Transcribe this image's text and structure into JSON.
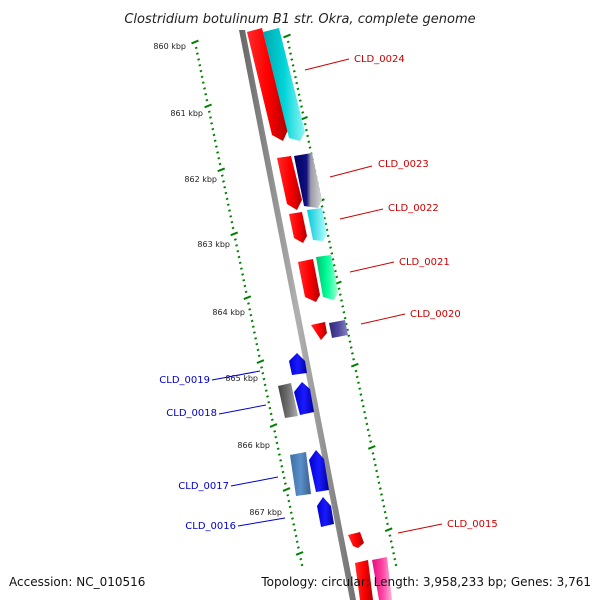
{
  "title": "Clostridium botulinum B1 str. Okra, complete genome",
  "accession": "Accession: NC_010516",
  "summary": "Topology: circular; Length: 3,958,233 bp; Genes: 3,761",
  "ticks": [
    "860 kbp",
    "861 kbp",
    "862 kbp",
    "863 kbp",
    "864 kbp",
    "865 kbp",
    "866 kbp",
    "867 kbp"
  ],
  "colors": {
    "forward_label": "#cc0000",
    "reverse_label": "#0000cc",
    "backbone": "#888888",
    "tick": "#008000"
  },
  "features": {
    "forward": [
      "CLD_0024",
      "CLD_0023",
      "CLD_0022",
      "CLD_0021",
      "CLD_0020",
      "CLD_0015"
    ],
    "reverse": [
      "CLD_0019",
      "CLD_0018",
      "CLD_0017",
      "CLD_0016"
    ]
  }
}
